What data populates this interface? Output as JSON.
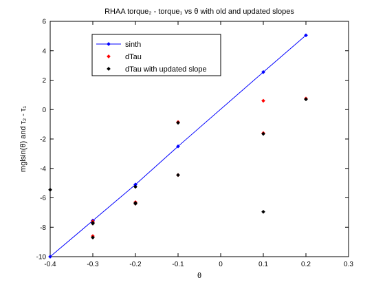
{
  "chart_data": {
    "type": "scatter",
    "title": "RHAA torque₂ - torque₁ vs θ with old and updated slopes",
    "xlabel": "θ",
    "ylabel": "mglsin(θ) and τ₂ - τ₁",
    "xlim": [
      -0.4,
      0.3
    ],
    "ylim": [
      -10,
      6
    ],
    "xticks": [
      -0.4,
      -0.3,
      -0.2,
      -0.1,
      0,
      0.1,
      0.2,
      0.3
    ],
    "xtick_labels": [
      "-0.4",
      "-0.3",
      "-0.2",
      "-0.1",
      "0",
      "0.1",
      "0.2",
      "0.3"
    ],
    "yticks": [
      -10,
      -8,
      -6,
      -4,
      -2,
      0,
      2,
      4,
      6
    ],
    "ytick_labels": [
      "-10",
      "-8",
      "-6",
      "-4",
      "-2",
      "0",
      "2",
      "4",
      "6"
    ],
    "grid": false,
    "legend_position": "top-left",
    "series": [
      {
        "name": "sinth",
        "style": "line-marker",
        "color": "#0000ff",
        "x": [
          -0.4,
          -0.3,
          -0.3,
          -0.2,
          -0.2,
          -0.1,
          0.1,
          0.2
        ],
        "y": [
          -10.0,
          -7.55,
          -7.55,
          -5.1,
          -5.1,
          -2.5,
          2.55,
          5.05
        ]
      },
      {
        "name": "dTau",
        "style": "marker",
        "color": "#ff0000",
        "x": [
          -0.3,
          -0.3,
          -0.3,
          -0.2,
          -0.2,
          -0.1,
          -0.1,
          0.1,
          0.1,
          0.2
        ],
        "y": [
          -7.6,
          -8.6,
          -7.7,
          -6.3,
          -6.4,
          -4.45,
          -0.85,
          0.6,
          -1.6,
          0.75
        ]
      },
      {
        "name": "dTau with updated slope",
        "style": "marker",
        "color": "#000000",
        "x": [
          -0.4,
          -0.3,
          -0.3,
          -0.3,
          -0.2,
          -0.2,
          -0.2,
          -0.1,
          -0.1,
          0.1,
          0.1,
          0.2
        ],
        "y": [
          -5.45,
          -7.7,
          -8.7,
          -7.75,
          -6.4,
          -6.35,
          -5.25,
          -4.45,
          -0.9,
          -1.65,
          -6.95,
          0.7
        ]
      }
    ]
  }
}
